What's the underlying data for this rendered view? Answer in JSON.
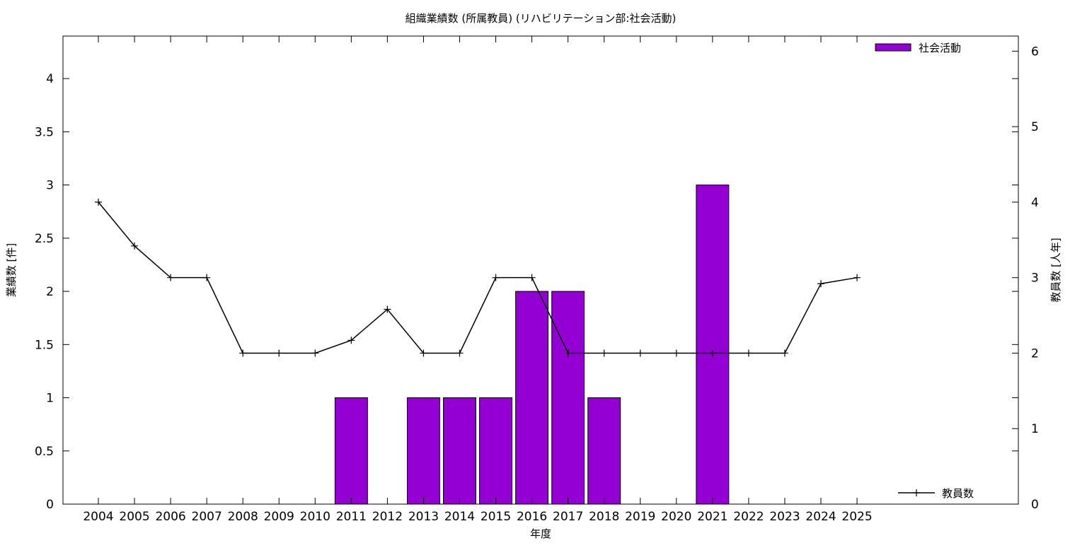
{
  "chart_data": {
    "type": "bar",
    "title": "組織業績数 (所属教員) (リハビリテーション部:社会活動)",
    "xlabel": "年度",
    "ylabel": "業績数 [件]",
    "y2label": "教員数 [人年]",
    "categories": [
      "2004",
      "2005",
      "2006",
      "2007",
      "2008",
      "2009",
      "2010",
      "2011",
      "2012",
      "2013",
      "2014",
      "2015",
      "2016",
      "2017",
      "2018",
      "2019",
      "2020",
      "2021",
      "2022",
      "2023",
      "2024",
      "2025"
    ],
    "ylim": [
      0,
      4.4
    ],
    "y2lim": [
      0,
      6.2
    ],
    "yticks": [
      "0",
      "0.5",
      "1",
      "1.5",
      "2",
      "2.5",
      "3",
      "3.5",
      "4"
    ],
    "y2ticks": [
      "0",
      "1",
      "2",
      "3",
      "4",
      "5",
      "6"
    ],
    "grid": false,
    "series": [
      {
        "name": "社会活動",
        "type": "bar",
        "axis": "left",
        "color": "#9400d3",
        "values": [
          0,
          0,
          0,
          0,
          0,
          0,
          0,
          1,
          0,
          1,
          1,
          1,
          2,
          2,
          1,
          0,
          0,
          3,
          0,
          0,
          0,
          null
        ],
        "legend_position": "top-right"
      },
      {
        "name": "教員数",
        "type": "line",
        "axis": "right",
        "color": "#000000",
        "values": [
          4,
          3.42,
          3,
          3,
          2,
          2,
          2,
          2.17,
          2.58,
          2,
          2,
          3,
          3,
          2,
          2,
          2,
          2,
          2,
          2,
          2,
          2.92,
          3
        ],
        "legend_position": "bottom-right"
      }
    ]
  }
}
